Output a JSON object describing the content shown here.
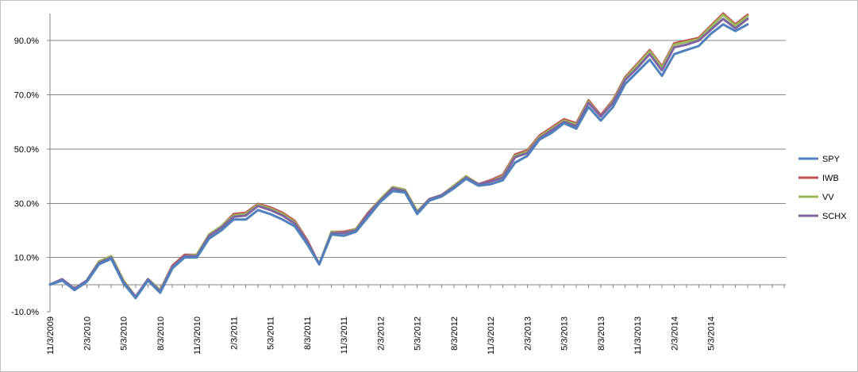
{
  "chart_data": {
    "type": "line",
    "title": "",
    "xlabel": "",
    "ylabel": "",
    "ylim": [
      -10,
      100
    ],
    "y_ticks": [
      -10,
      10,
      30,
      50,
      70,
      90
    ],
    "y_tick_labels": [
      "-10.0%",
      "10.0%",
      "30.0%",
      "50.0%",
      "70.0%",
      "90.0%"
    ],
    "y_grid_values": [
      0,
      10,
      30,
      50,
      70,
      90
    ],
    "grid": true,
    "legend_position": "right",
    "x_tick_labels": [
      "11/3/2009",
      "2/3/2010",
      "5/3/2010",
      "8/3/2010",
      "11/3/2010",
      "2/3/2011",
      "5/3/2011",
      "8/3/2011",
      "11/3/2011",
      "2/3/2012",
      "5/3/2012",
      "8/3/2012",
      "11/3/2012",
      "2/3/2013",
      "5/3/2013",
      "8/3/2013",
      "11/3/2013",
      "2/3/2014",
      "5/3/2014"
    ],
    "x": [
      "2009-11",
      "2009-12",
      "2010-01",
      "2010-02",
      "2010-03",
      "2010-04",
      "2010-05",
      "2010-06",
      "2010-07",
      "2010-08",
      "2010-09",
      "2010-10",
      "2010-11",
      "2010-12",
      "2011-01",
      "2011-02",
      "2011-03",
      "2011-04",
      "2011-05",
      "2011-06",
      "2011-07",
      "2011-08",
      "2011-09",
      "2011-10",
      "2011-11",
      "2011-12",
      "2012-01",
      "2012-02",
      "2012-03",
      "2012-04",
      "2012-05",
      "2012-06",
      "2012-07",
      "2012-08",
      "2012-09",
      "2012-10",
      "2012-11",
      "2012-12",
      "2013-01",
      "2013-02",
      "2013-03",
      "2013-04",
      "2013-05",
      "2013-06",
      "2013-07",
      "2013-08",
      "2013-09",
      "2013-10",
      "2013-11",
      "2013-12",
      "2014-01",
      "2014-02",
      "2014-03",
      "2014-04",
      "2014-05",
      "2014-06",
      "2014-07",
      "2014-08"
    ],
    "series": [
      {
        "name": "SPY",
        "color": "#4f81bd",
        "values": [
          0,
          1.5,
          -2,
          1,
          7.5,
          9.5,
          0.5,
          -5,
          1.5,
          -3,
          6,
          10,
          10,
          17,
          20,
          24,
          24,
          27.5,
          26,
          24,
          21.5,
          15,
          7.5,
          18.5,
          18,
          19.5,
          25,
          30.5,
          34.5,
          34,
          26,
          31,
          32.5,
          35.5,
          39,
          36.5,
          37,
          38.5,
          45,
          47.5,
          53.5,
          56,
          59.5,
          57.5,
          65.5,
          60.5,
          65.5,
          74,
          78.5,
          83,
          77,
          85,
          86.5,
          88,
          92.5,
          96,
          93.5,
          96
        ]
      },
      {
        "name": "IWB",
        "color": "#c0504d",
        "values": [
          0,
          2,
          -1.5,
          1.5,
          8.5,
          10.5,
          1.5,
          -4.5,
          2,
          -2,
          7,
          11,
          11,
          18.5,
          21.5,
          26,
          26.5,
          29.8,
          28.5,
          26.5,
          23.5,
          16.5,
          7.5,
          19.5,
          19.5,
          20.5,
          26.5,
          31.5,
          36,
          35,
          27,
          31.5,
          33,
          36.5,
          40,
          37,
          38.5,
          40.5,
          48,
          49.5,
          55,
          58,
          61,
          59.5,
          68,
          62.5,
          68,
          76.5,
          81.5,
          86.5,
          80.5,
          89,
          90,
          91,
          95.5,
          100,
          96,
          99.5
        ]
      },
      {
        "name": "VV",
        "color": "#9bbb59",
        "values": [
          0,
          2,
          -1.5,
          1.5,
          8.5,
          10.5,
          1.5,
          -4.5,
          2,
          -2,
          6.5,
          10.5,
          11,
          18.5,
          21.5,
          25.5,
          26,
          29.5,
          28,
          26,
          23,
          16,
          7.5,
          19.5,
          19,
          20.5,
          26,
          31.5,
          36,
          35,
          27,
          31.5,
          33,
          36.5,
          40,
          37,
          38,
          40,
          47.5,
          49,
          54.5,
          57.5,
          60.5,
          59,
          67.5,
          62,
          67.5,
          76,
          81,
          86,
          80,
          88.5,
          89.5,
          90.5,
          95,
          99.5,
          95.5,
          99
        ]
      },
      {
        "name": "SCHX",
        "color": "#8064a2",
        "values": [
          0,
          2,
          -1.5,
          1.5,
          8,
          10,
          1,
          -4.5,
          2,
          -2.5,
          6.5,
          10.5,
          10.5,
          18,
          21,
          25,
          25.5,
          29,
          27.5,
          25.5,
          22.5,
          16,
          7.5,
          19,
          19,
          20,
          26,
          31,
          35.5,
          34.5,
          26.5,
          31.5,
          33,
          36,
          39.5,
          37,
          38,
          39.5,
          47,
          48.5,
          54,
          57,
          60,
          58.5,
          67,
          62,
          67,
          75.5,
          80,
          85,
          79,
          87.5,
          88.5,
          90,
          94,
          98,
          94.5,
          98
        ]
      }
    ]
  }
}
